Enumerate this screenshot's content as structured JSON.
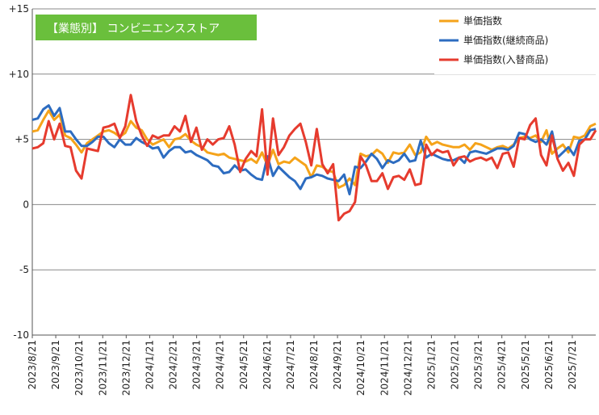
{
  "chart_data": {
    "type": "line",
    "title_badge": "【業態別】 コンビニエンスストア",
    "ylim": [
      -10,
      15
    ],
    "y_ticks": [
      -10,
      -5,
      0,
      5,
      10,
      15
    ],
    "y_tick_labels": [
      "-10",
      "-5",
      "0",
      "+5",
      "+10",
      "+15"
    ],
    "grid": true,
    "legend_position": "top-right",
    "x_tick_labels": [
      "2023/8/21",
      "2023/9/21",
      "2023/10/21",
      "2023/11/21",
      "2023/12/21",
      "2024/1/21",
      "2024/2/21",
      "2024/3/21",
      "2024/4/21",
      "2024/5/21",
      "2024/6/21",
      "2024/7/21",
      "2024/8/21",
      "2024/9/21",
      "2024/10/21",
      "2024/11/21",
      "2024/12/21",
      "2025/1/21",
      "2025/2/21",
      "2025/3/21",
      "2025/4/21",
      "2025/5/21",
      "2025/6/21",
      "2025/7/21"
    ],
    "colors": {
      "badge_bg": "#6abf3c",
      "grid": "#888888",
      "orange": "#f5a31a",
      "blue": "#2d6cc0",
      "red": "#e63b2e"
    },
    "series": [
      {
        "name": "単価指数",
        "color": "#f5a31a",
        "values": [
          5.6,
          5.7,
          6.5,
          7.2,
          6.5,
          6.9,
          5.3,
          5.1,
          4.6,
          4.0,
          4.7,
          5.0,
          5.3,
          5.6,
          5.7,
          5.5,
          5.2,
          5.5,
          6.4,
          5.9,
          5.7,
          5.0,
          4.6,
          4.8,
          5.0,
          4.4,
          5.0,
          5.1,
          5.4,
          4.9,
          4.6,
          4.4,
          4.0,
          3.9,
          3.8,
          3.9,
          3.6,
          3.5,
          3.4,
          3.3,
          3.5,
          3.2,
          4.0,
          3.0,
          4.2,
          3.1,
          3.3,
          3.2,
          3.6,
          3.3,
          3.0,
          2.1,
          3.0,
          2.9,
          2.6,
          2.5,
          1.3,
          1.5,
          2.0,
          1.5,
          3.9,
          3.7,
          3.8,
          4.2,
          3.9,
          3.2,
          4.0,
          3.9,
          4.0,
          4.6,
          3.8,
          4.0,
          5.2,
          4.6,
          4.8,
          4.6,
          4.5,
          4.4,
          4.4,
          4.6,
          4.2,
          4.7,
          4.6,
          4.4,
          4.2,
          4.4,
          4.5,
          4.3,
          4.6,
          5.1,
          5.2,
          5.1,
          5.3,
          4.8,
          5.7,
          3.9,
          4.3,
          4.6,
          4.0,
          5.2,
          5.1,
          5.3,
          6.0,
          6.2
        ]
      },
      {
        "name": "単価指数(継続商品)",
        "color": "#2d6cc0",
        "values": [
          6.5,
          6.6,
          7.3,
          7.6,
          6.8,
          7.4,
          5.6,
          5.6,
          5.0,
          4.5,
          4.5,
          4.8,
          5.2,
          5.2,
          4.7,
          4.4,
          5.0,
          4.6,
          4.6,
          5.1,
          4.8,
          4.6,
          4.3,
          4.4,
          3.6,
          4.1,
          4.4,
          4.4,
          4.0,
          4.1,
          3.8,
          3.6,
          3.4,
          3.0,
          2.9,
          2.4,
          2.5,
          3.0,
          2.6,
          2.7,
          2.3,
          2.0,
          1.9,
          3.7,
          2.2,
          2.9,
          2.5,
          2.1,
          1.8,
          1.2,
          2.0,
          2.1,
          2.3,
          2.2,
          2.0,
          1.9,
          1.8,
          2.3,
          0.8,
          2.9,
          2.8,
          3.3,
          3.9,
          3.5,
          2.8,
          3.4,
          3.2,
          3.4,
          3.9,
          3.3,
          3.4,
          4.9,
          3.6,
          3.9,
          3.7,
          3.5,
          3.4,
          3.4,
          3.6,
          3.2,
          4.0,
          4.1,
          4.0,
          3.9,
          4.1,
          4.3,
          4.3,
          4.2,
          4.5,
          5.5,
          5.4,
          5.0,
          4.8,
          5.0,
          4.6,
          5.6,
          3.6,
          4.0,
          4.4,
          3.8,
          4.9,
          5.0,
          5.7,
          5.8
        ]
      },
      {
        "name": "単価指数(入替商品)",
        "color": "#e63b2e",
        "values": [
          4.3,
          4.4,
          4.7,
          6.4,
          5.0,
          6.2,
          4.5,
          4.4,
          2.6,
          2.0,
          4.3,
          4.2,
          4.1,
          5.9,
          6.0,
          6.2,
          5.1,
          6.0,
          8.4,
          6.4,
          5.3,
          4.5,
          5.3,
          5.1,
          5.3,
          5.3,
          6.0,
          5.6,
          6.8,
          4.8,
          5.9,
          4.2,
          5.0,
          4.6,
          5.0,
          5.1,
          6.0,
          4.6,
          2.5,
          3.5,
          4.1,
          3.7,
          7.3,
          2.3,
          6.6,
          3.8,
          4.4,
          5.3,
          5.8,
          6.2,
          4.8,
          3.0,
          5.8,
          3.1,
          2.4,
          3.1,
          -1.2,
          -0.7,
          -0.5,
          0.2,
          3.7,
          3.0,
          1.8,
          1.8,
          2.4,
          1.2,
          2.1,
          2.2,
          1.9,
          2.7,
          1.5,
          1.6,
          4.6,
          3.8,
          4.2,
          4.0,
          4.1,
          3.0,
          3.6,
          3.7,
          3.3,
          3.5,
          3.6,
          3.4,
          3.6,
          2.8,
          3.9,
          4.0,
          2.9,
          5.1,
          5.0,
          6.1,
          6.6,
          3.8,
          3.0,
          5.3,
          3.5,
          2.6,
          3.2,
          2.2,
          4.6,
          5.0,
          5.0,
          5.7
        ]
      }
    ]
  }
}
